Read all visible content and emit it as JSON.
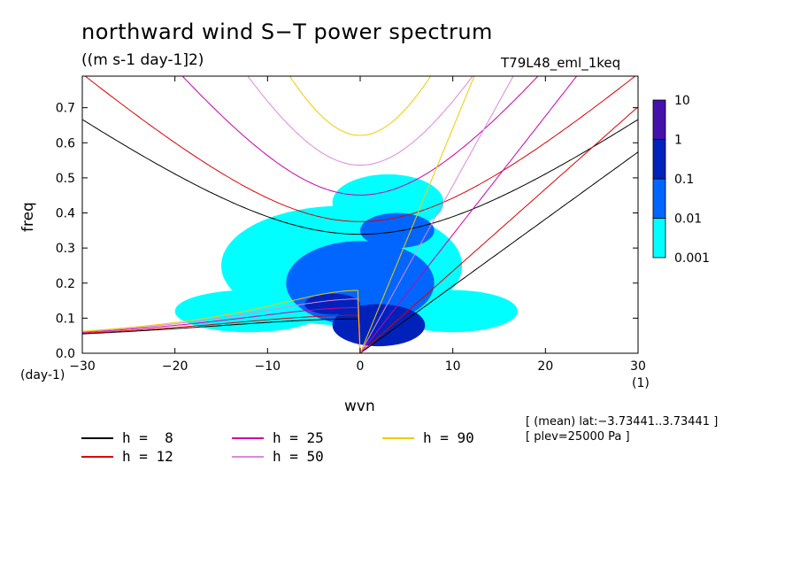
{
  "chart_data": {
    "type": "heatmap",
    "title": "northward wind S−T power spectrum",
    "subtitle": "((m s-1 day-1]2)",
    "run_id": "T79L48_eml_1keq",
    "xlabel": "wvn",
    "ylabel": "freq",
    "x_unit": "(1)",
    "y_unit": "(day-1)",
    "xlim": [
      -30,
      30
    ],
    "ylim": [
      0,
      0.79
    ],
    "x_ticks": [
      -30,
      -20,
      -10,
      0,
      10,
      20,
      30
    ],
    "x_tick_labels": [
      "−30",
      "−20",
      "−10",
      "0",
      "10",
      "20",
      "30"
    ],
    "y_ticks": [
      0.0,
      0.1,
      0.2,
      0.3,
      0.4,
      0.5,
      0.6,
      0.7
    ],
    "y_tick_labels": [
      "0.0",
      "0.1",
      "0.2",
      "0.3",
      "0.4",
      "0.5",
      "0.6",
      "0.7"
    ],
    "colorbar": {
      "levels": [
        "0.001",
        "0.01",
        "0.1",
        "1",
        "10"
      ],
      "colors": [
        "#00ffff",
        "#0066ff",
        "#0022bb",
        "#4411aa"
      ]
    },
    "power_regions": [
      {
        "level": "0.001",
        "x_center": -2,
        "y_center": 0.25,
        "x_halfwidth": 13,
        "y_halfheight": 0.17
      },
      {
        "level": "0.001",
        "x_center": 3,
        "y_center": 0.43,
        "x_halfwidth": 6,
        "y_halfheight": 0.08
      },
      {
        "level": "0.001",
        "x_center": -12,
        "y_center": 0.12,
        "x_halfwidth": 8,
        "y_halfheight": 0.06
      },
      {
        "level": "0.001",
        "x_center": 10,
        "y_center": 0.12,
        "x_halfwidth": 7,
        "y_halfheight": 0.06
      },
      {
        "level": "0.01",
        "x_center": 0,
        "y_center": 0.2,
        "x_halfwidth": 8,
        "y_halfheight": 0.12
      },
      {
        "level": "0.01",
        "x_center": 4,
        "y_center": 0.35,
        "x_halfwidth": 4,
        "y_halfheight": 0.05
      },
      {
        "level": "0.1",
        "x_center": 2,
        "y_center": 0.08,
        "x_halfwidth": 5,
        "y_halfheight": 0.06
      },
      {
        "level": "0.1",
        "x_center": -3,
        "y_center": 0.14,
        "x_halfwidth": 3,
        "y_halfheight": 0.03
      }
    ],
    "dispersion_curves": [
      {
        "name": "h =  8",
        "h": 8,
        "color": "#000000"
      },
      {
        "name": "h = 12",
        "h": 12,
        "color": "#dd0000"
      },
      {
        "name": "h = 25",
        "h": 25,
        "color": "#cc00aa"
      },
      {
        "name": "h = 50",
        "h": 50,
        "color": "#dd88dd"
      },
      {
        "name": "h = 90",
        "h": 90,
        "color": "#eecc00"
      }
    ],
    "annotations": [
      "[ (mean) lat:−3.73441..3.73441 ]",
      "[ plev=25000 Pa ]"
    ]
  }
}
